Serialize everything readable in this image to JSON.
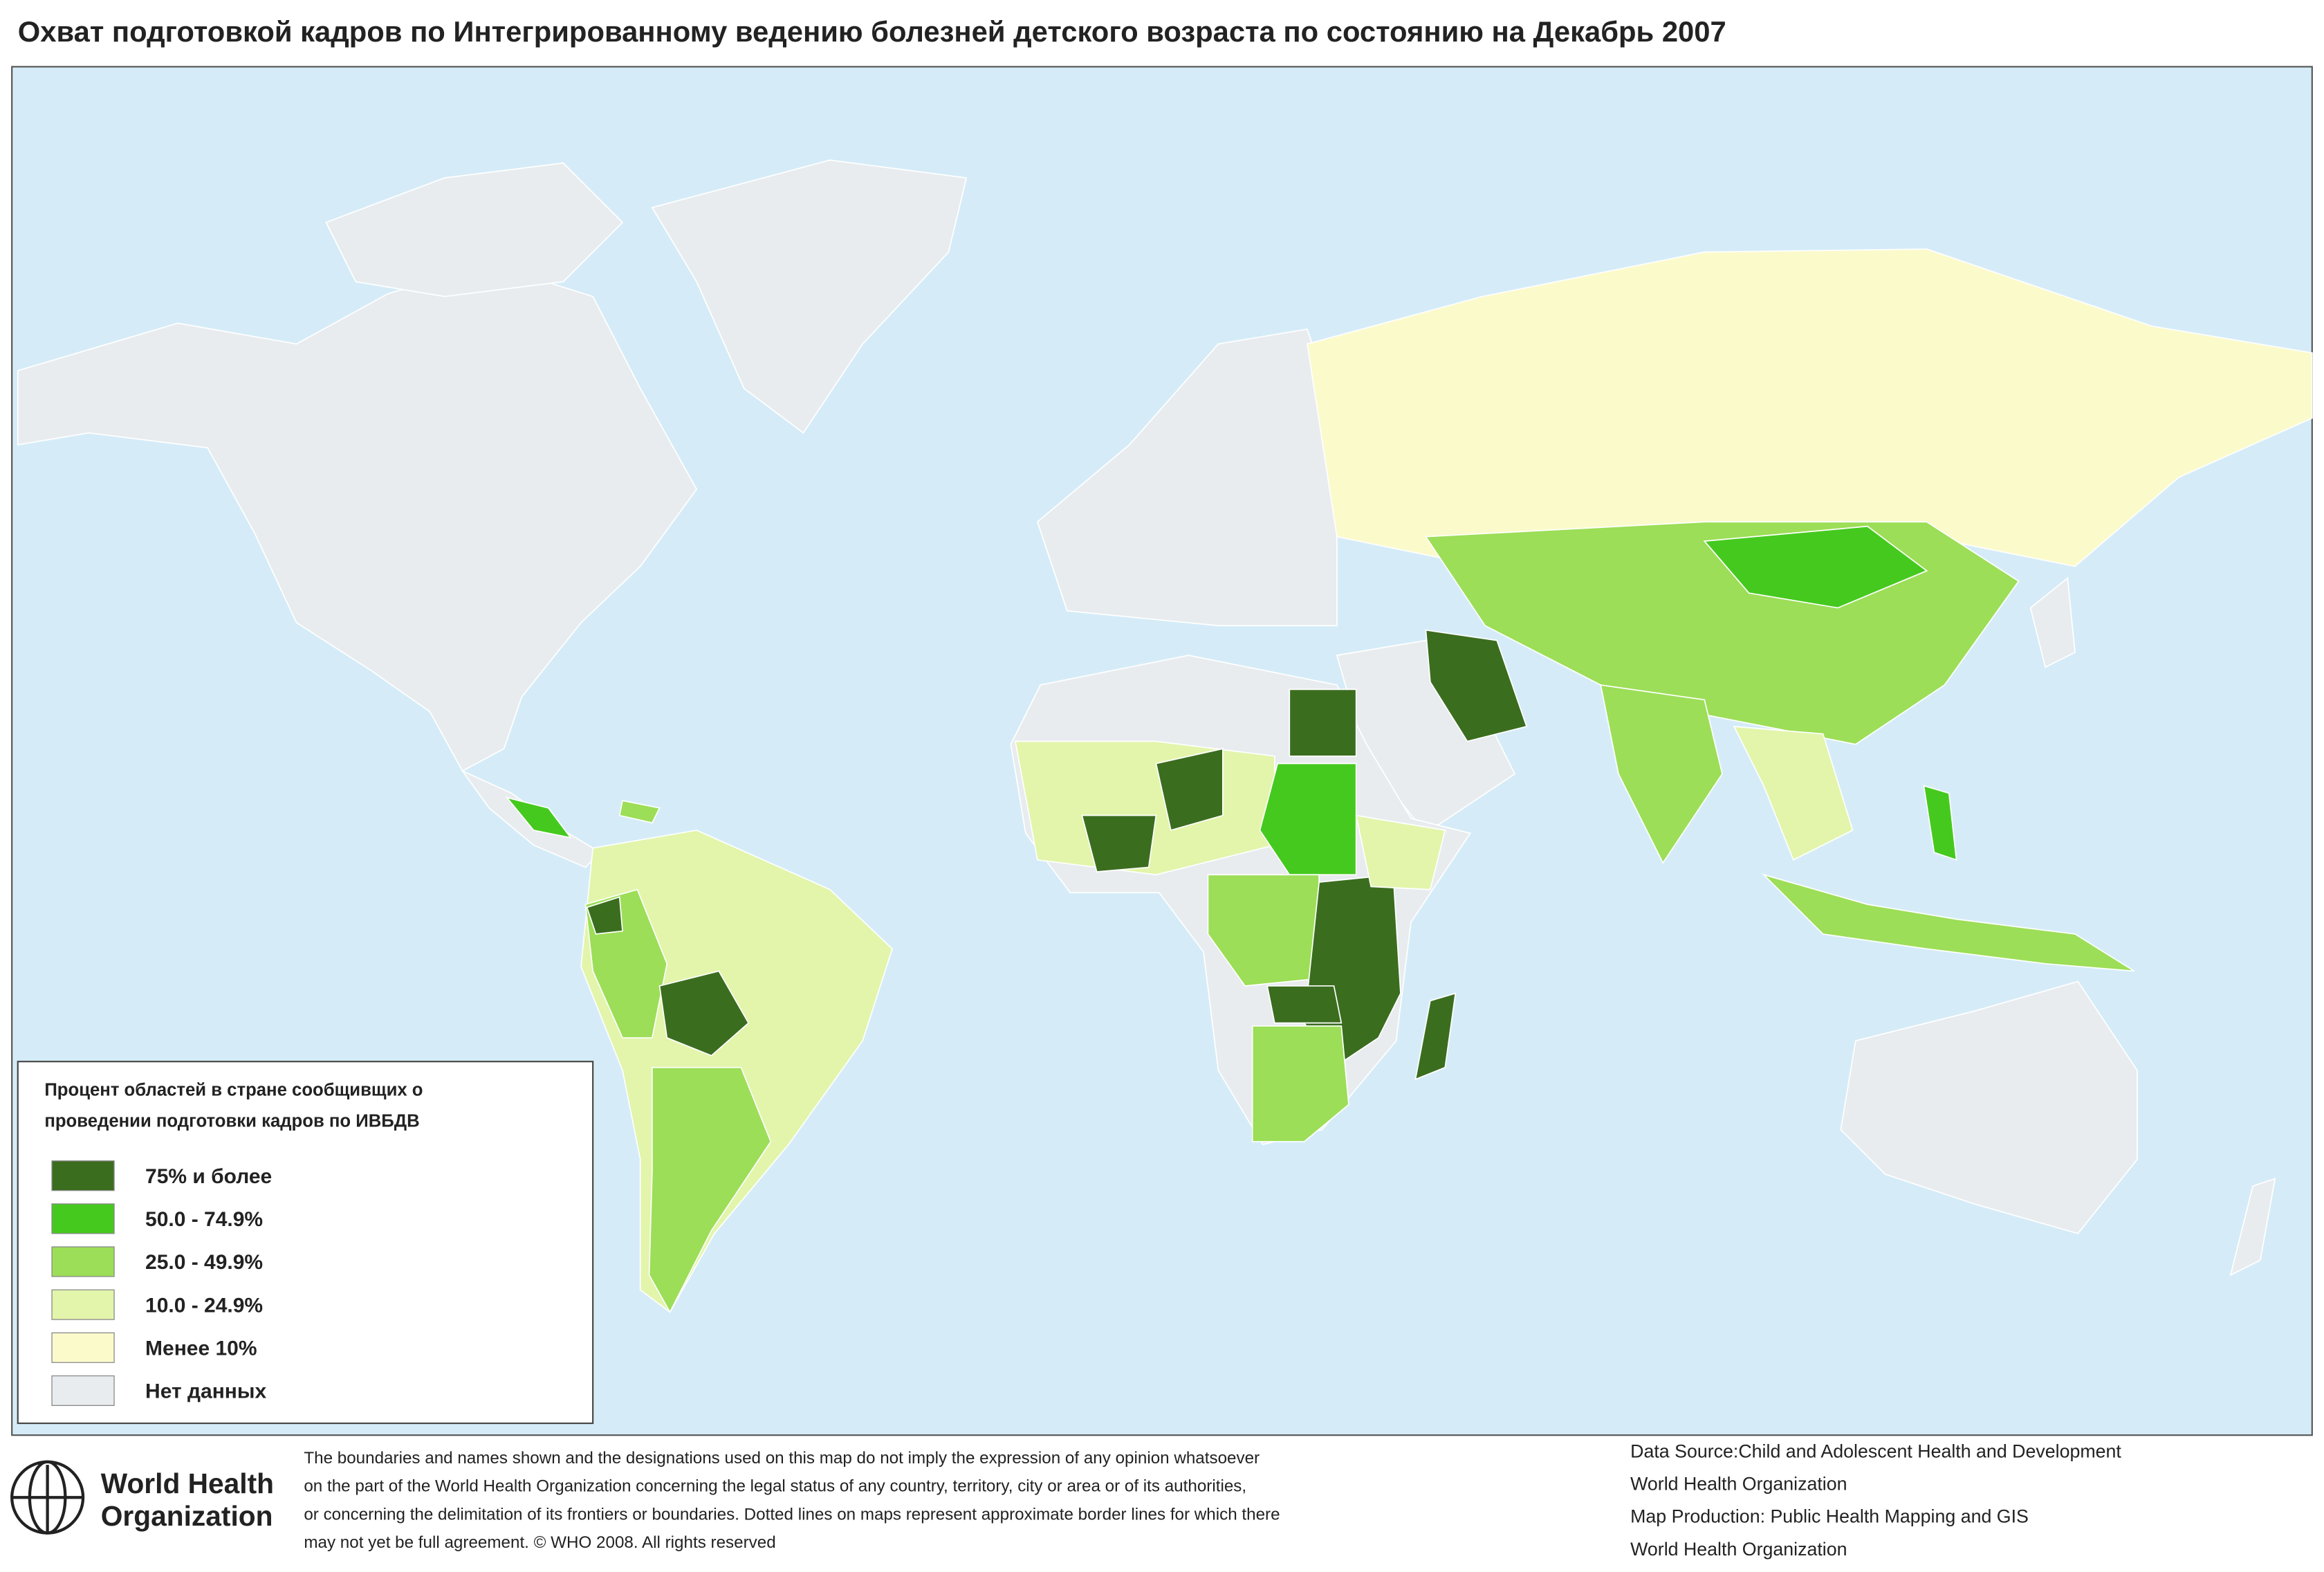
{
  "title": "Охват подготовкой кадров по Интегрированному ведению болезней детского возраста по состоянию на Декабрь 2007",
  "legend": {
    "title": [
      "Процент областей в стране сообщивщих о",
      "проведении подготовки кадров по ИВБДВ"
    ],
    "items": [
      {
        "label": "75% и более",
        "color": "#3b6d1f"
      },
      {
        "label": "50.0 - 74.9%",
        "color": "#46c91f"
      },
      {
        "label": "25.0 - 49.9%",
        "color": "#9cde57"
      },
      {
        "label": "10.0 - 24.9%",
        "color": "#e2f5ab"
      },
      {
        "label": "Менее 10%",
        "color": "#fbfacb"
      },
      {
        "label": "Нет данных",
        "color": "#e8ecef"
      }
    ]
  },
  "footer": {
    "logo": [
      "World Health",
      "Organization"
    ],
    "disclaimer": [
      "The boundaries and names shown and the designations used on this map do not imply the expression of any opinion whatsoever",
      "on the part of the World Health Organization concerning the legal status of any country, territory, city or area or of its authorities,",
      "or concerning the delimitation of its frontiers or boundaries.  Dotted lines on maps represent approximate border lines for which there",
      "may not yet be full agreement.  © WHO 2008. All rights reserved"
    ],
    "source": [
      "Data Source:Child and Adolescent Health and Development",
      "World Health Organization",
      "Map Production: Public Health Mapping and GIS",
      "World Health Organization"
    ]
  }
}
